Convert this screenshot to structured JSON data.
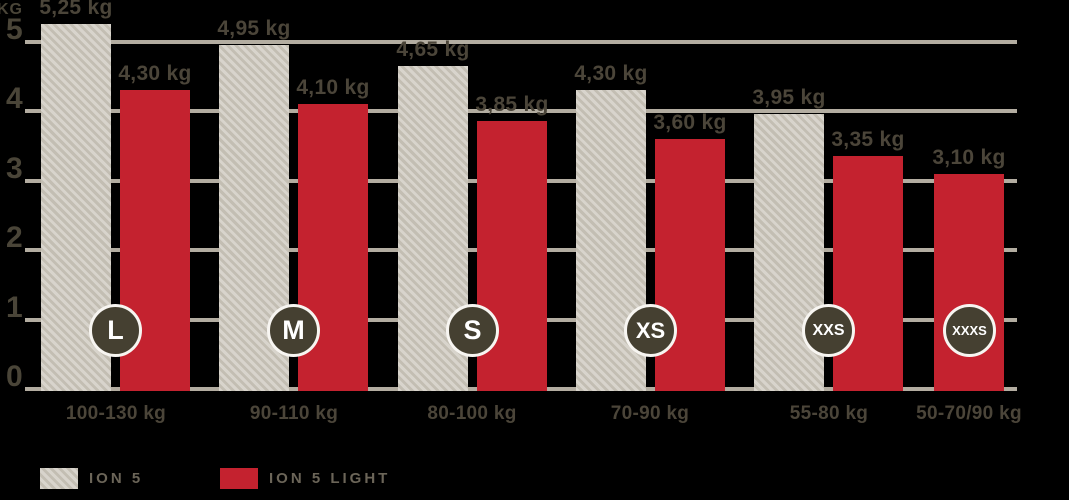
{
  "axis": {
    "unit_label": "KG",
    "ticks": [
      0,
      1,
      2,
      3,
      4,
      5
    ]
  },
  "chart_data": {
    "type": "bar",
    "title": "",
    "xlabel": "",
    "ylabel": "KG",
    "ylim": [
      0,
      5.5
    ],
    "grid": true,
    "legend_position": "bottom",
    "categories": [
      "100-130 kg",
      "90-110 kg",
      "80-100 kg",
      "70-90 kg",
      "55-80 kg",
      "50-70/90 kg"
    ],
    "badges": [
      "L",
      "M",
      "S",
      "XS",
      "XXS",
      "XXXS"
    ],
    "series": [
      {
        "name": "ION 5",
        "values": [
          5.25,
          4.95,
          4.65,
          4.3,
          3.95,
          null
        ],
        "labels": [
          "5,25 kg",
          "4,95 kg",
          "4,65 kg",
          "4,30 kg",
          "3,95 kg",
          null
        ]
      },
      {
        "name": "ION 5 LIGHT",
        "values": [
          4.3,
          4.1,
          3.85,
          3.6,
          3.35,
          3.1
        ],
        "labels": [
          "4,30 kg",
          "4,10 kg",
          "3,85 kg",
          "3,60 kg",
          "3,35 kg",
          "3,10 kg"
        ]
      }
    ]
  },
  "legend": {
    "items": [
      {
        "label": "ION 5",
        "swatch": "gray-hatched"
      },
      {
        "label": "ION 5 LIGHT",
        "swatch": "red"
      }
    ]
  },
  "colors": {
    "background": "#000000",
    "bar_red": "#c4222f",
    "bar_gray_light": "#d8d4cc",
    "bar_gray_dark": "#c3beb3",
    "gridline": "#b3ada1",
    "text_dark": "#4b4539",
    "legend_text": "#6b6558",
    "badge_background": "#454031",
    "badge_ring": "#f7f5f1",
    "badge_text": "#ffffff"
  }
}
